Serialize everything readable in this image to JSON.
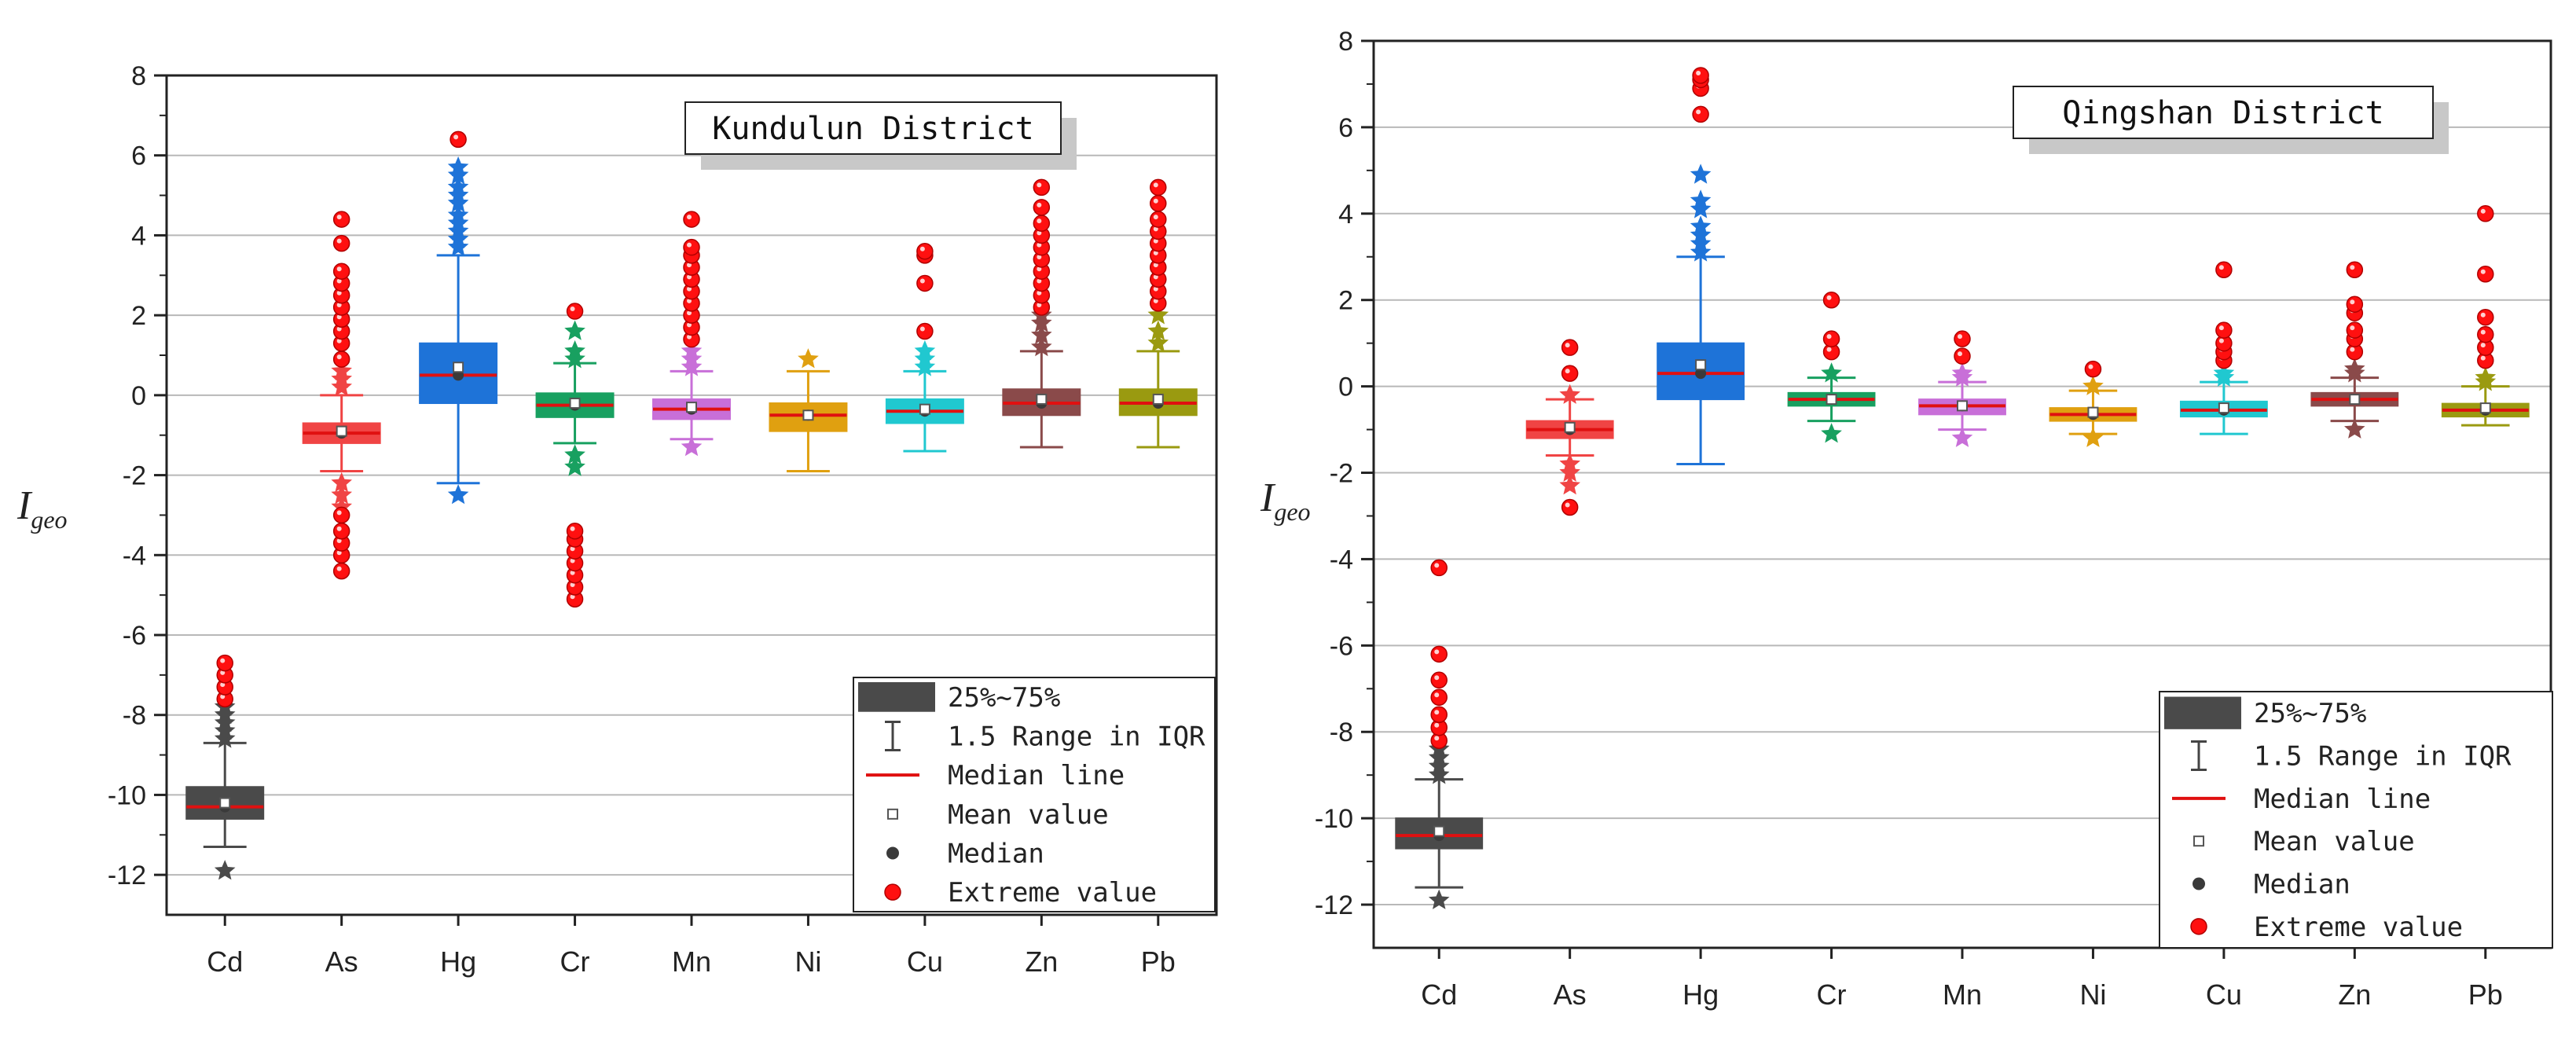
{
  "chart_data": [
    {
      "type": "box",
      "title": "Kundulun District",
      "ylabel": "I",
      "ylabel_sub": "geo",
      "ylim": [
        -13,
        8
      ],
      "yticks": [
        -12,
        -10,
        -8,
        -6,
        -4,
        -2,
        0,
        2,
        4,
        6,
        8
      ],
      "grid": true,
      "legend_position": "bottom-right",
      "categories": [
        "Cd",
        "As",
        "Hg",
        "Cr",
        "Mn",
        "Ni",
        "Cu",
        "Zn",
        "Pb"
      ],
      "colors": [
        "#4a4a4a",
        "#f04444",
        "#1e73d8",
        "#18a060",
        "#c86fd8",
        "#e0a010",
        "#20c8d0",
        "#8a4a4a",
        "#9a9a10"
      ],
      "boxes": [
        {
          "name": "Cd",
          "q1": -10.6,
          "q3": -9.8,
          "median": -10.3,
          "mean": -10.2,
          "whisker_low": -11.3,
          "whisker_high": -8.7,
          "star_points": [
            -11.9,
            -8.6,
            -8.4,
            -8.2,
            -8.0,
            -7.8
          ],
          "extreme_points": [
            -7.6,
            -7.3,
            -7.0,
            -6.7
          ]
        },
        {
          "name": "As",
          "q1": -1.2,
          "q3": -0.7,
          "median": -0.95,
          "mean": -0.9,
          "whisker_low": -1.9,
          "whisker_high": 0.0,
          "star_points": [
            -2.8,
            -2.5,
            -2.2,
            0.2,
            0.4,
            0.6
          ],
          "extreme_points": [
            -4.4,
            -4.0,
            -3.7,
            -3.4,
            -3.0,
            0.9,
            1.3,
            1.6,
            1.9,
            2.2,
            2.5,
            2.8,
            3.1,
            3.8,
            4.4
          ]
        },
        {
          "name": "Hg",
          "q1": -0.2,
          "q3": 1.3,
          "median": 0.5,
          "mean": 0.7,
          "whisker_low": -2.2,
          "whisker_high": 3.5,
          "star_points": [
            -2.5,
            3.7,
            3.9,
            4.1,
            4.3,
            4.5,
            4.8,
            5.0,
            5.2,
            5.5,
            5.7
          ],
          "extreme_points": [
            6.4
          ]
        },
        {
          "name": "Cr",
          "q1": -0.55,
          "q3": 0.05,
          "median": -0.25,
          "mean": -0.2,
          "whisker_low": -1.2,
          "whisker_high": 0.8,
          "star_points": [
            -1.8,
            -1.5,
            0.9,
            1.1,
            1.6
          ],
          "extreme_points": [
            -5.1,
            -4.8,
            -4.5,
            -4.2,
            -3.9,
            -3.6,
            -3.4,
            2.1
          ]
        },
        {
          "name": "Mn",
          "q1": -0.6,
          "q3": -0.1,
          "median": -0.35,
          "mean": -0.3,
          "whisker_low": -1.1,
          "whisker_high": 0.6,
          "star_points": [
            -1.3,
            0.7,
            0.9,
            1.1
          ],
          "extreme_points": [
            1.4,
            1.7,
            2.0,
            2.3,
            2.6,
            2.9,
            3.2,
            3.5,
            3.7,
            4.4
          ]
        },
        {
          "name": "Ni",
          "q1": -0.9,
          "q3": -0.2,
          "median": -0.5,
          "mean": -0.5,
          "whisker_low": -1.9,
          "whisker_high": 0.6,
          "star_points": [
            0.9
          ],
          "extreme_points": []
        },
        {
          "name": "Cu",
          "q1": -0.7,
          "q3": -0.1,
          "median": -0.4,
          "mean": -0.35,
          "whisker_low": -1.4,
          "whisker_high": 0.6,
          "star_points": [
            0.7,
            0.9,
            1.1
          ],
          "extreme_points": [
            1.6,
            2.8,
            3.5,
            3.6
          ]
        },
        {
          "name": "Zn",
          "q1": -0.5,
          "q3": 0.15,
          "median": -0.2,
          "mean": -0.1,
          "whisker_low": -1.3,
          "whisker_high": 1.1,
          "star_points": [
            1.2,
            1.5,
            1.8,
            2.0
          ],
          "extreme_points": [
            2.2,
            2.5,
            2.8,
            3.1,
            3.4,
            3.7,
            4.0,
            4.3,
            4.7,
            5.2
          ]
        },
        {
          "name": "Pb",
          "q1": -0.5,
          "q3": 0.15,
          "median": -0.2,
          "mean": -0.1,
          "whisker_low": -1.3,
          "whisker_high": 1.1,
          "star_points": [
            1.3,
            1.6,
            2.0
          ],
          "extreme_points": [
            2.3,
            2.6,
            2.9,
            3.2,
            3.5,
            3.8,
            4.1,
            4.4,
            4.8,
            5.2
          ]
        }
      ]
    },
    {
      "type": "box",
      "title": "Qingshan District",
      "ylabel": "I",
      "ylabel_sub": "geo",
      "ylim": [
        -13,
        8
      ],
      "yticks": [
        -12,
        -10,
        -8,
        -6,
        -4,
        -2,
        0,
        2,
        4,
        6,
        8
      ],
      "grid": true,
      "legend_position": "bottom-right",
      "categories": [
        "Cd",
        "As",
        "Hg",
        "Cr",
        "Mn",
        "Ni",
        "Cu",
        "Zn",
        "Pb"
      ],
      "colors": [
        "#4a4a4a",
        "#f04444",
        "#1e73d8",
        "#18a060",
        "#c86fd8",
        "#e0a010",
        "#20c8d0",
        "#8a4a4a",
        "#9a9a10"
      ],
      "boxes": [
        {
          "name": "Cd",
          "q1": -10.7,
          "q3": -10.0,
          "median": -10.4,
          "mean": -10.3,
          "whisker_low": -11.6,
          "whisker_high": -9.1,
          "star_points": [
            -11.9,
            -9.0,
            -8.8,
            -8.6,
            -8.4
          ],
          "extreme_points": [
            -8.2,
            -7.9,
            -7.6,
            -7.2,
            -6.8,
            -6.2,
            -4.2
          ]
        },
        {
          "name": "As",
          "q1": -1.2,
          "q3": -0.8,
          "median": -1.0,
          "mean": -0.95,
          "whisker_low": -1.6,
          "whisker_high": -0.3,
          "star_points": [
            -2.3,
            -2.0,
            -1.8,
            -0.2
          ],
          "extreme_points": [
            -2.8,
            0.3,
            0.9
          ]
        },
        {
          "name": "Hg",
          "q1": -0.3,
          "q3": 1.0,
          "median": 0.3,
          "mean": 0.5,
          "whisker_low": -1.8,
          "whisker_high": 3.0,
          "star_points": [
            3.1,
            3.3,
            3.5,
            3.7,
            4.1,
            4.3,
            4.9
          ],
          "extreme_points": [
            6.3,
            6.9,
            7.1,
            7.2
          ]
        },
        {
          "name": "Cr",
          "q1": -0.45,
          "q3": -0.15,
          "median": -0.3,
          "mean": -0.3,
          "whisker_low": -0.8,
          "whisker_high": 0.2,
          "star_points": [
            -1.1,
            0.3
          ],
          "extreme_points": [
            0.8,
            1.1,
            2.0
          ]
        },
        {
          "name": "Mn",
          "q1": -0.65,
          "q3": -0.3,
          "median": -0.45,
          "mean": -0.45,
          "whisker_low": -1.0,
          "whisker_high": 0.1,
          "star_points": [
            -1.2,
            0.2,
            0.3
          ],
          "extreme_points": [
            0.7,
            1.1
          ]
        },
        {
          "name": "Ni",
          "q1": -0.8,
          "q3": -0.5,
          "median": -0.65,
          "mean": -0.6,
          "whisker_low": -1.1,
          "whisker_high": -0.1,
          "star_points": [
            -1.2,
            0.0
          ],
          "extreme_points": [
            0.4
          ]
        },
        {
          "name": "Cu",
          "q1": -0.7,
          "q3": -0.35,
          "median": -0.55,
          "mean": -0.5,
          "whisker_low": -1.1,
          "whisker_high": 0.1,
          "star_points": [
            0.2,
            0.3
          ],
          "extreme_points": [
            0.6,
            0.8,
            1.0,
            1.3,
            2.7
          ]
        },
        {
          "name": "Zn",
          "q1": -0.45,
          "q3": -0.15,
          "median": -0.3,
          "mean": -0.3,
          "whisker_low": -0.8,
          "whisker_high": 0.2,
          "star_points": [
            -1.0,
            0.3,
            0.4
          ],
          "extreme_points": [
            0.8,
            1.1,
            1.3,
            1.7,
            1.9,
            2.7
          ]
        },
        {
          "name": "Pb",
          "q1": -0.7,
          "q3": -0.4,
          "median": -0.55,
          "mean": -0.5,
          "whisker_low": -0.9,
          "whisker_high": 0.0,
          "star_points": [
            0.1,
            0.2
          ],
          "extreme_points": [
            0.6,
            0.9,
            1.2,
            1.6,
            2.6,
            4.0
          ]
        }
      ]
    }
  ],
  "legend": {
    "box_label": "25%~75%",
    "whisker_label": "1.5 Range in IQR",
    "median_line_label": "Median line",
    "mean_label": "Mean value",
    "median_label": "Median",
    "extreme_label": "Extreme value",
    "median_line_color": "#e01010",
    "extreme_color": "#ff1010",
    "box_color": "#4a4a4a"
  }
}
